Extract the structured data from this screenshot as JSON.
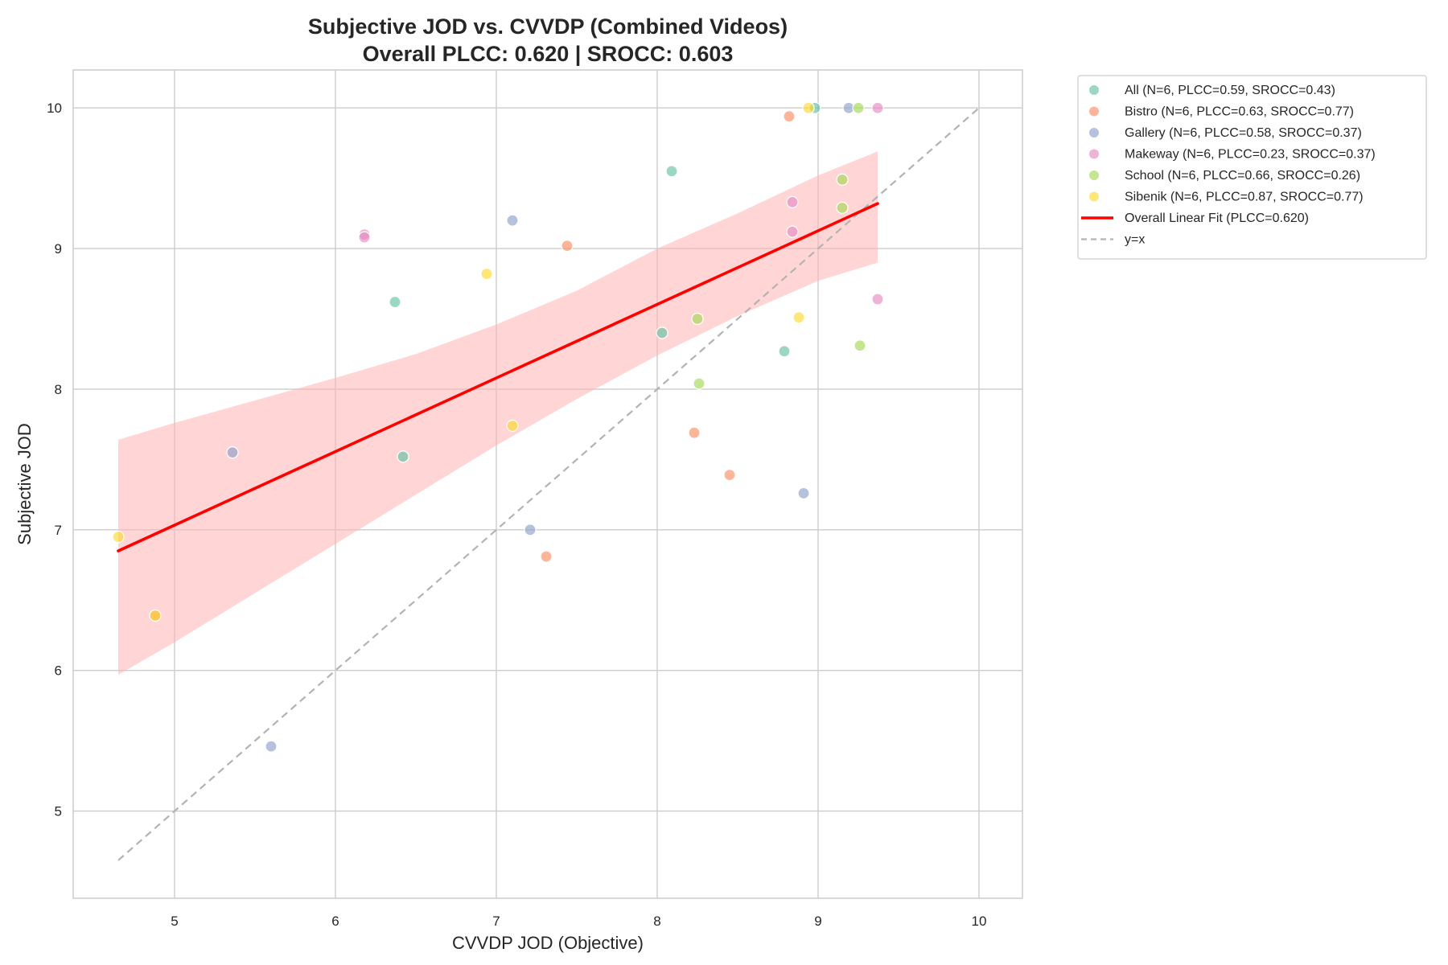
{
  "chart_data": {
    "type": "scatter",
    "title": "Subjective JOD vs. CVVDP (Combined Videos)",
    "subtitle": "Overall PLCC: 0.620 | SROCC: 0.603",
    "xlabel": "CVVDP JOD (Objective)",
    "ylabel": "Subjective JOD",
    "xlim": [
      4.37,
      10.27
    ],
    "ylim": [
      4.38,
      10.27
    ],
    "xticks": [
      5,
      6,
      7,
      8,
      9,
      10
    ],
    "yticks": [
      5,
      6,
      7,
      8,
      9,
      10
    ],
    "grid": true,
    "legend_position": "outside-top-right",
    "series": [
      {
        "name": "All (N=6, PLCC=0.59, SROCC=0.43)",
        "color": "#66c2a5",
        "points": [
          [
            6.37,
            8.62
          ],
          [
            8.09,
            9.55
          ],
          [
            8.98,
            10.0
          ],
          [
            8.79,
            8.27
          ],
          [
            8.03,
            8.4
          ],
          [
            6.42,
            7.52
          ]
        ]
      },
      {
        "name": "Bistro (N=6, PLCC=0.63, SROCC=0.77)",
        "color": "#fc8d62",
        "points": [
          [
            8.82,
            9.94
          ],
          [
            7.44,
            9.02
          ],
          [
            8.23,
            7.69
          ],
          [
            8.45,
            7.39
          ],
          [
            7.31,
            6.81
          ],
          [
            4.88,
            6.39
          ]
        ]
      },
      {
        "name": "Gallery (N=6, PLCC=0.58, SROCC=0.37)",
        "color": "#8da0cb",
        "points": [
          [
            9.19,
            10.0
          ],
          [
            7.1,
            9.2
          ],
          [
            5.36,
            7.55
          ],
          [
            8.91,
            7.26
          ],
          [
            7.21,
            7.0
          ],
          [
            5.6,
            5.46
          ]
        ]
      },
      {
        "name": "Makeway (N=6, PLCC=0.23, SROCC=0.37)",
        "color": "#e78ac3",
        "points": [
          [
            9.37,
            10.0
          ],
          [
            6.18,
            9.1
          ],
          [
            6.18,
            9.08
          ],
          [
            8.84,
            9.33
          ],
          [
            8.84,
            9.12
          ],
          [
            9.37,
            8.64
          ]
        ]
      },
      {
        "name": "School (N=6, PLCC=0.66, SROCC=0.26)",
        "color": "#a6d854",
        "points": [
          [
            9.25,
            10.0
          ],
          [
            9.15,
            9.49
          ],
          [
            9.15,
            9.29
          ],
          [
            8.25,
            8.5
          ],
          [
            9.26,
            8.31
          ],
          [
            8.26,
            8.04
          ]
        ]
      },
      {
        "name": "Sibenik (N=6, PLCC=0.87, SROCC=0.77)",
        "color": "#ffd92f",
        "points": [
          [
            8.94,
            10.0
          ],
          [
            6.94,
            8.82
          ],
          [
            8.88,
            8.51
          ],
          [
            7.1,
            7.74
          ],
          [
            4.65,
            6.95
          ],
          [
            4.88,
            6.39
          ]
        ]
      }
    ],
    "fit": {
      "name": "Overall Linear Fit (PLCC=0.620)",
      "color": "#ff0000",
      "x": [
        4.65,
        9.37
      ],
      "y": [
        6.85,
        9.32
      ],
      "band_color": "#ffb3b3",
      "band_upper": [
        [
          4.65,
          7.64
        ],
        [
          5.0,
          7.76
        ],
        [
          5.5,
          7.92
        ],
        [
          6.0,
          8.08
        ],
        [
          6.5,
          8.25
        ],
        [
          7.0,
          8.46
        ],
        [
          7.5,
          8.7
        ],
        [
          8.0,
          9.0
        ],
        [
          8.5,
          9.25
        ],
        [
          9.0,
          9.52
        ],
        [
          9.37,
          9.69
        ]
      ],
      "band_lower": [
        [
          4.65,
          5.97
        ],
        [
          5.0,
          6.2
        ],
        [
          5.5,
          6.55
        ],
        [
          6.0,
          6.9
        ],
        [
          6.5,
          7.25
        ],
        [
          7.0,
          7.6
        ],
        [
          7.5,
          7.93
        ],
        [
          8.0,
          8.24
        ],
        [
          8.5,
          8.52
        ],
        [
          9.0,
          8.77
        ],
        [
          9.37,
          8.9
        ]
      ]
    },
    "reference": {
      "name": "y=x",
      "color": "#b3b3b3",
      "x": [
        4.65,
        10.0
      ],
      "y": [
        4.65,
        10.0
      ]
    }
  }
}
